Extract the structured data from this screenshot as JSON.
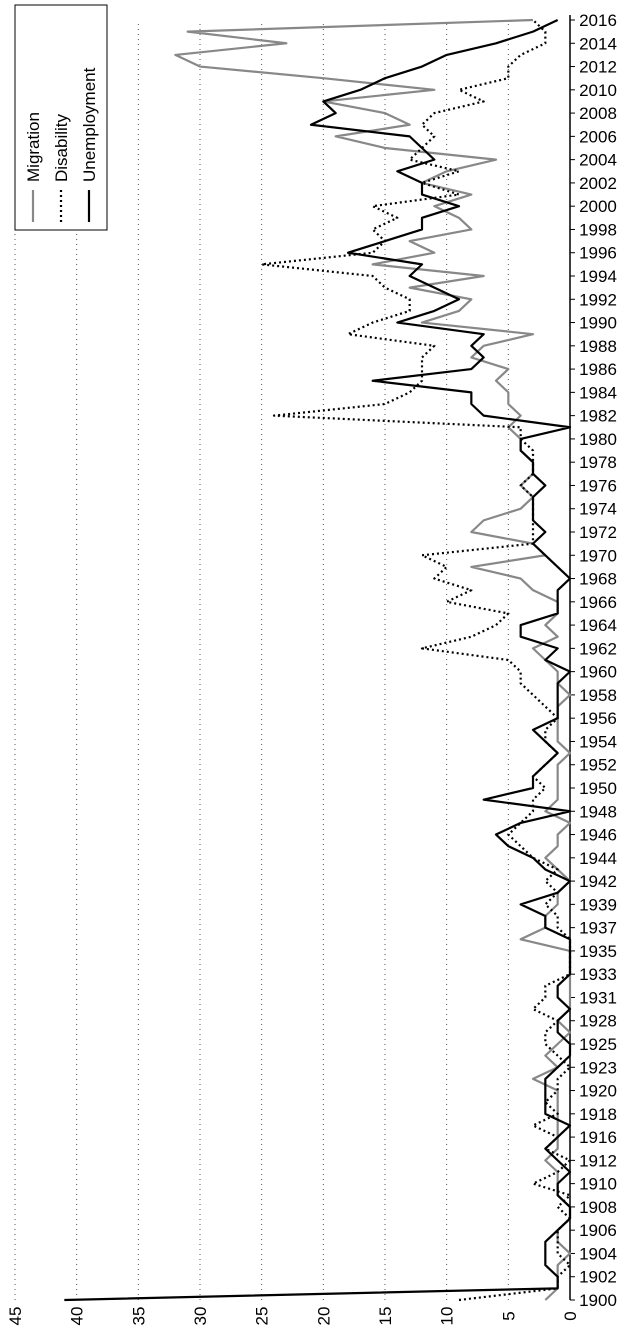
{
  "chart_data": {
    "type": "line",
    "categories": [
      "1900",
      null,
      "1902",
      null,
      "1904",
      null,
      "1906",
      null,
      "1908",
      null,
      "1910",
      null,
      "1912",
      null,
      "1916",
      null,
      "1918",
      null,
      "1920",
      null,
      "1923",
      null,
      "1925",
      null,
      "1928",
      null,
      "1931",
      null,
      "1933",
      null,
      "1935",
      null,
      "1937",
      null,
      "1939",
      null,
      "1942",
      null,
      "1944",
      null,
      "1946",
      null,
      "1948",
      null,
      "1950",
      null,
      "1952",
      null,
      "1954",
      null,
      "1956",
      null,
      "1958",
      null,
      "1960",
      null,
      "1962",
      null,
      "1964",
      null,
      "1966",
      null,
      "1968",
      null,
      "1970",
      null,
      "1972",
      null,
      "1974",
      null,
      "1976",
      null,
      "1978",
      null,
      "1980",
      null,
      "1982",
      null,
      "1984",
      null,
      "1986",
      null,
      "1988",
      null,
      "1990",
      null,
      "1992",
      null,
      "1994",
      null,
      "1996",
      null,
      "1998",
      null,
      "2000",
      null,
      "2002",
      null,
      "2004",
      null,
      "2006",
      null,
      "2008",
      null,
      "2010",
      null,
      "2012",
      null,
      "2014",
      null,
      "2016"
    ],
    "series": [
      {
        "name": "Migration",
        "color": "#888888",
        "style": "solid",
        "values": [
          2,
          1,
          1,
          1,
          0,
          1,
          1,
          0,
          0,
          1,
          1,
          1,
          2,
          1,
          1,
          1,
          1,
          1,
          1,
          3,
          1,
          2,
          1,
          0,
          1,
          0,
          0,
          0,
          0,
          0,
          0,
          4,
          2,
          2,
          1,
          1,
          0,
          1,
          2,
          1,
          1,
          0,
          2,
          1,
          1,
          1,
          1,
          0,
          1,
          1,
          1,
          1,
          0,
          1,
          1,
          2,
          3,
          1,
          2,
          1,
          1,
          3,
          4,
          8,
          2,
          3,
          8,
          7,
          4,
          3,
          4,
          3,
          3,
          4,
          4,
          5,
          4,
          5,
          5,
          6,
          5,
          8,
          7,
          3,
          12,
          9,
          8,
          13,
          7,
          16,
          11,
          13,
          8,
          9,
          11,
          8,
          12,
          10,
          6,
          15,
          19,
          13,
          15,
          20,
          11,
          20,
          30,
          32,
          23,
          31,
          3
        ]
      },
      {
        "name": "Disability",
        "color": "#000000",
        "style": "dotted",
        "values": [
          9,
          1,
          1,
          0,
          1,
          1,
          1,
          0,
          1,
          0,
          3,
          1,
          0,
          2,
          1,
          3,
          1,
          2,
          1,
          1,
          0,
          1,
          2,
          2,
          1,
          3,
          2,
          2,
          0,
          0,
          0,
          0,
          1,
          1,
          2,
          1,
          2,
          1,
          3,
          4,
          5,
          4,
          3,
          3,
          2,
          3,
          2,
          1,
          2,
          2,
          1,
          2,
          3,
          4,
          4,
          5,
          12,
          8,
          6,
          5,
          10,
          8,
          11,
          10,
          12,
          3,
          3,
          3,
          3,
          3,
          4,
          3,
          3,
          3,
          4,
          4,
          24,
          15,
          13,
          12,
          12,
          12,
          11,
          18,
          16,
          13,
          13,
          15,
          16,
          25,
          16,
          15,
          16,
          14,
          16,
          9,
          12,
          9,
          13,
          12,
          11,
          12,
          11,
          7,
          9,
          5,
          5,
          4,
          2,
          2,
          3
        ]
      },
      {
        "name": "Unemployment",
        "color": "#000000",
        "style": "solid",
        "values": [
          41,
          1,
          1,
          2,
          2,
          2,
          1,
          0,
          0,
          1,
          1,
          0,
          1,
          2,
          1,
          0,
          2,
          2,
          2,
          2,
          1,
          0,
          0,
          1,
          1,
          0,
          1,
          1,
          0,
          0,
          0,
          0,
          2,
          2,
          4,
          1,
          0,
          2,
          3,
          5,
          6,
          4,
          0,
          7,
          3,
          3,
          2,
          1,
          2,
          3,
          1,
          1,
          1,
          1,
          0,
          2,
          1,
          4,
          4,
          1,
          1,
          1,
          0,
          1,
          2,
          3,
          2,
          3,
          3,
          3,
          2,
          3,
          3,
          4,
          4,
          0,
          7,
          8,
          8,
          16,
          8,
          7,
          8,
          7,
          14,
          11,
          9,
          11,
          13,
          12,
          18,
          15,
          12,
          12,
          9,
          12,
          12,
          14,
          11,
          12,
          13,
          21,
          19,
          20,
          17,
          15,
          12,
          10,
          6,
          3,
          1
        ]
      }
    ],
    "ylim": [
      0,
      45
    ],
    "yticks": [
      0,
      5,
      10,
      15,
      20,
      25,
      30,
      35,
      40,
      45
    ],
    "grid": true,
    "legend": "top-right"
  }
}
